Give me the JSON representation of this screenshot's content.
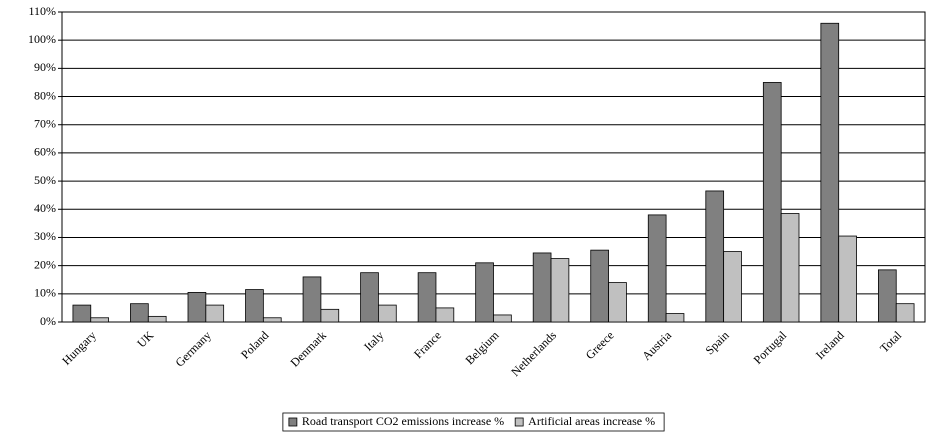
{
  "chart_data": {
    "type": "bar",
    "categories": [
      "Hungary",
      "UK",
      "Germany",
      "Poland",
      "Denmark",
      "Italy",
      "France",
      "Belgium",
      "Netherlands",
      "Greece",
      "Austria",
      "Spain",
      "Portugal",
      "Ireland",
      "Total"
    ],
    "series": [
      {
        "name": "Road transport CO2 emissions increase %",
        "color": "#808080",
        "values": [
          6,
          6.5,
          10.5,
          11.5,
          16,
          17.5,
          17.5,
          21,
          24.5,
          25.5,
          38,
          46.5,
          85,
          106,
          18.5
        ]
      },
      {
        "name": "Artificial areas increase %",
        "color": "#c0c0c0",
        "values": [
          1.5,
          2,
          6,
          1.5,
          4.5,
          6,
          5,
          2.5,
          22.5,
          14,
          3,
          25,
          38.5,
          30.5,
          6.5
        ]
      }
    ],
    "ylim": [
      0,
      110
    ],
    "yticks": [
      {
        "value": 0,
        "label": "0%"
      },
      {
        "value": 10,
        "label": "10%"
      },
      {
        "value": 20,
        "label": "20%"
      },
      {
        "value": 30,
        "label": "30%"
      },
      {
        "value": 40,
        "label": "40%"
      },
      {
        "value": 50,
        "label": "50%"
      },
      {
        "value": 60,
        "label": "60%"
      },
      {
        "value": 70,
        "label": "70%"
      },
      {
        "value": 80,
        "label": "80%"
      },
      {
        "value": 90,
        "label": "90%"
      },
      {
        "value": 100,
        "label": "100%"
      },
      {
        "value": 110,
        "label": "110%"
      }
    ],
    "grid": true,
    "legend": "bottom"
  }
}
